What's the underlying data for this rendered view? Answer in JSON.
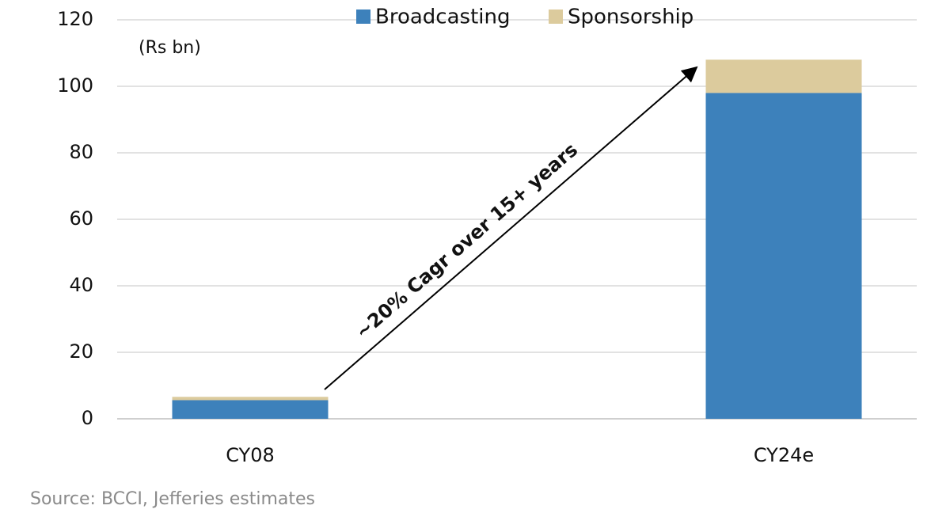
{
  "chart_data": {
    "type": "stacked_bar",
    "y_label": "(Rs bn)",
    "categories": [
      "CY08",
      "CY24e"
    ],
    "series": [
      {
        "name": "Broadcasting",
        "color": "#3d81bb",
        "values": [
          5.6,
          98
        ]
      },
      {
        "name": "Sponsorship",
        "color": "#dccb9d",
        "values": [
          1,
          10
        ]
      }
    ],
    "ylim": [
      0,
      120
    ],
    "yticks": [
      0,
      20,
      40,
      60,
      80,
      100,
      120
    ],
    "grid": true,
    "annotation": "~20% Cagr over 15+ years",
    "source": "Source: BCCI, Jefferies estimates"
  }
}
